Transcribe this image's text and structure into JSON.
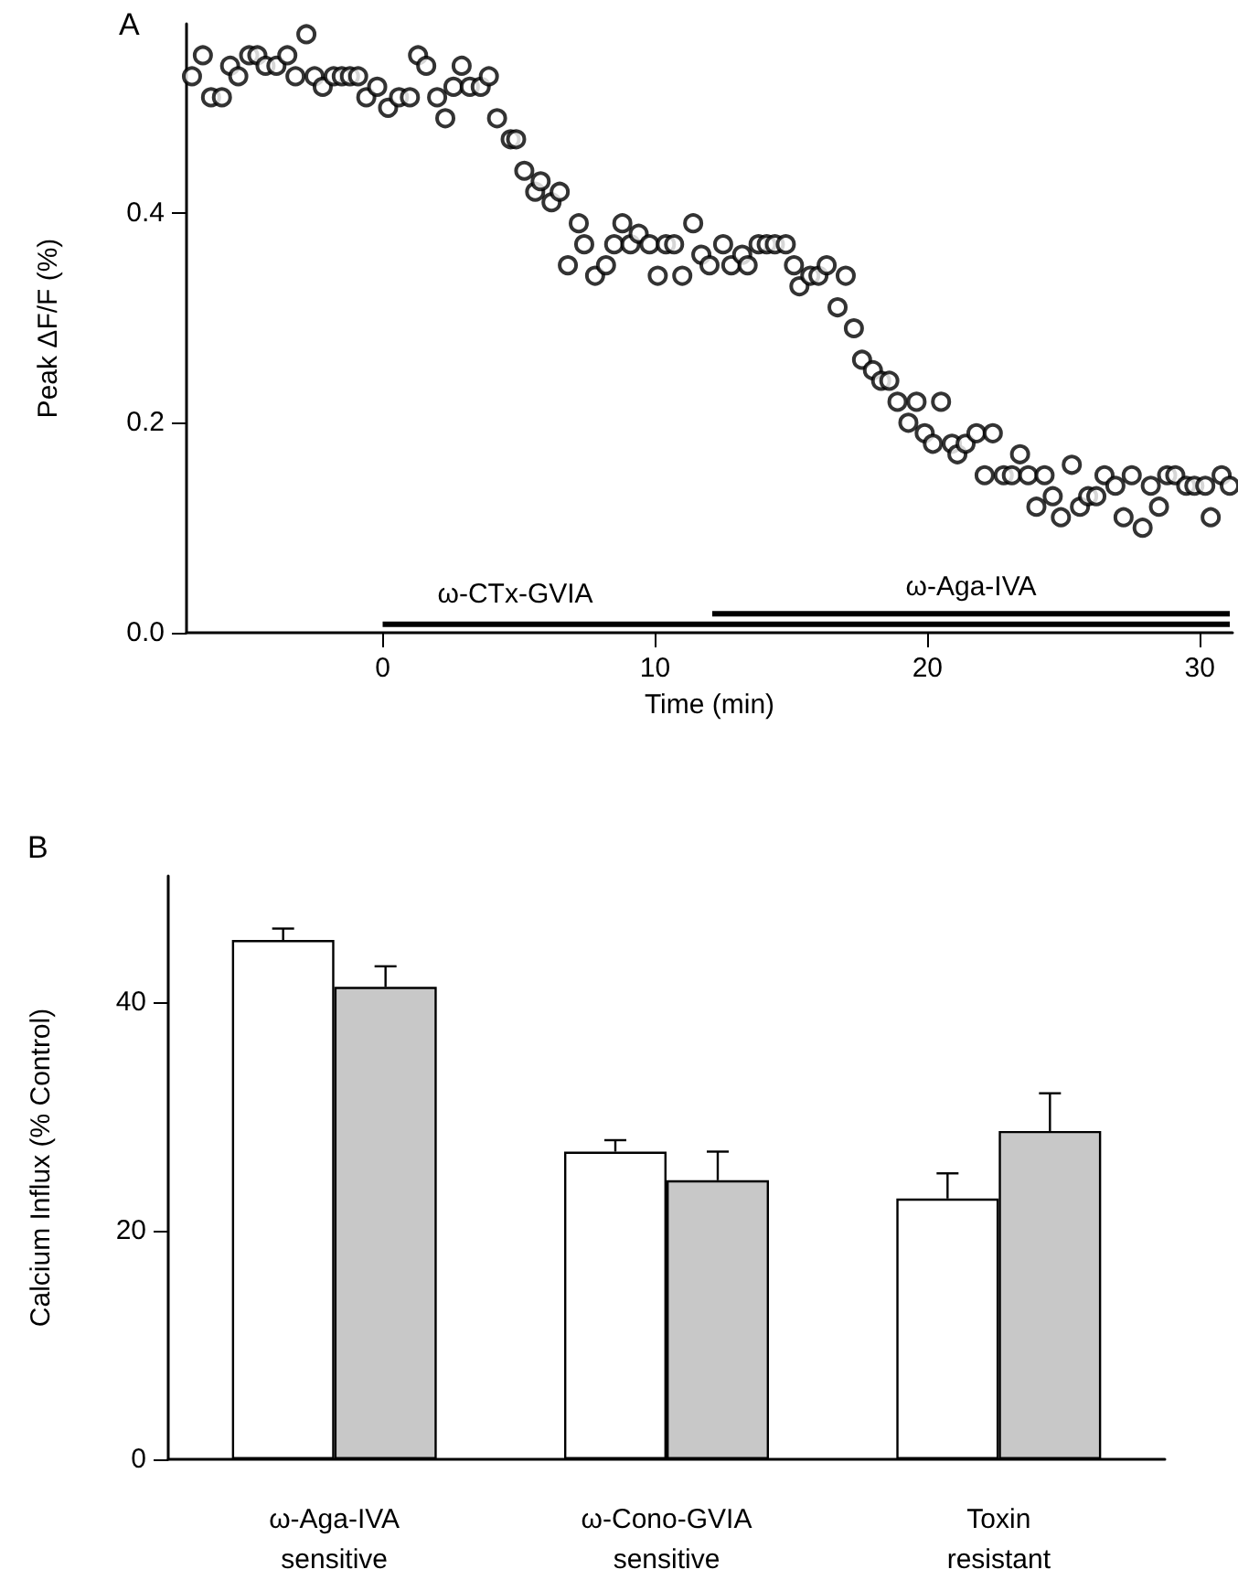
{
  "chart_data": [
    {
      "type": "scatter",
      "title": "A",
      "xlabel": "Time (min)",
      "ylabel": "Peak ΔF/F (%)",
      "marker": "circle",
      "xlim": [
        -7.2,
        31.2
      ],
      "xticks": [
        0,
        10,
        20,
        30
      ],
      "ylim": [
        0,
        0.58
      ],
      "yticks": [
        {
          "value": 0,
          "label": "0.0"
        },
        {
          "value": 0.2,
          "label": "0.2"
        },
        {
          "value": 0.4,
          "label": "0.4"
        }
      ],
      "series": [
        {
          "type": "line",
          "name": "ω-CTx-GVIA",
          "marker": "none",
          "color": "#000000",
          "x": [
            0,
            31.1
          ],
          "values": [
            0.008,
            0.008
          ]
        },
        {
          "type": "line",
          "name": "ω-Aga-IVA",
          "marker": "none",
          "color": "#000000",
          "x": [
            12.1,
            31.1
          ],
          "values": [
            0.018,
            0.018
          ]
        },
        {
          "color": "#000000",
          "x": [
            -7.0,
            -6.6,
            -6.3,
            -5.9,
            -5.6,
            -5.3,
            -4.9,
            -4.6,
            -4.3,
            -3.9,
            -3.5,
            -3.2,
            -2.8,
            -2.5,
            -2.2,
            -1.8,
            -1.5,
            -1.2,
            -0.9,
            -0.6,
            -0.2,
            0.2,
            0.6,
            1.0,
            1.3,
            1.6,
            2.0,
            2.3,
            2.6,
            2.9,
            3.2,
            3.6,
            3.9,
            4.2,
            4.7,
            4.9,
            5.2,
            5.6,
            5.8,
            6.2,
            6.5,
            6.8,
            7.2,
            7.4,
            7.8,
            8.2,
            8.5,
            8.8,
            9.1,
            9.4,
            9.8,
            10.1,
            10.4,
            10.7,
            11.0,
            11.4,
            11.7,
            12.0,
            12.5,
            12.8,
            13.2,
            13.4,
            13.8,
            14.1,
            14.4,
            14.8,
            15.1,
            15.3,
            15.7,
            16.0,
            16.3,
            16.7,
            17.0,
            17.3,
            17.6,
            18.0,
            18.3,
            18.6,
            18.9,
            19.3,
            19.6,
            19.9,
            20.2,
            20.5,
            20.9,
            21.1,
            21.4,
            21.8,
            22.1,
            22.4,
            22.8,
            23.1,
            23.4,
            23.7,
            24.0,
            24.3,
            24.6,
            24.9,
            25.3,
            25.6,
            25.9,
            26.2,
            26.5,
            26.9,
            27.2,
            27.5,
            27.9,
            28.2,
            28.5,
            28.8,
            29.1,
            29.5,
            29.8,
            30.2,
            30.4,
            30.8,
            31.1
          ],
          "values": [
            0.53,
            0.55,
            0.51,
            0.51,
            0.54,
            0.53,
            0.55,
            0.55,
            0.54,
            0.54,
            0.55,
            0.53,
            0.57,
            0.53,
            0.52,
            0.53,
            0.53,
            0.53,
            0.53,
            0.51,
            0.52,
            0.5,
            0.51,
            0.51,
            0.55,
            0.54,
            0.51,
            0.49,
            0.52,
            0.54,
            0.52,
            0.52,
            0.53,
            0.49,
            0.47,
            0.47,
            0.44,
            0.42,
            0.43,
            0.41,
            0.42,
            0.35,
            0.39,
            0.37,
            0.34,
            0.35,
            0.37,
            0.39,
            0.37,
            0.38,
            0.37,
            0.34,
            0.37,
            0.37,
            0.34,
            0.39,
            0.36,
            0.35,
            0.37,
            0.35,
            0.36,
            0.35,
            0.37,
            0.37,
            0.37,
            0.37,
            0.35,
            0.33,
            0.34,
            0.34,
            0.35,
            0.31,
            0.34,
            0.29,
            0.26,
            0.25,
            0.24,
            0.24,
            0.22,
            0.2,
            0.22,
            0.19,
            0.18,
            0.22,
            0.18,
            0.17,
            0.18,
            0.19,
            0.15,
            0.19,
            0.15,
            0.15,
            0.17,
            0.15,
            0.12,
            0.15,
            0.13,
            0.11,
            0.16,
            0.12,
            0.13,
            0.13,
            0.15,
            0.14,
            0.11,
            0.15,
            0.1,
            0.14,
            0.12,
            0.15,
            0.15,
            0.14,
            0.14,
            0.14,
            0.11,
            0.15,
            0.14
          ]
        }
      ]
    },
    {
      "type": "bar",
      "title": "B",
      "ylabel": "Calcium Influx (% Control)",
      "categories": [
        "ω-Aga-IVA\nsensitive",
        "ω-Cono-GVIA\nsensitive",
        "Toxin\nresistant"
      ],
      "ylim": [
        0,
        51
      ],
      "yticks": [
        0,
        20,
        40
      ],
      "series": [
        {
          "color": "#ffffff",
          "values": [
            45.4,
            26.9,
            22.8
          ],
          "errors": [
            [
              45.4,
              46.4
            ],
            [
              26.9,
              27.9
            ],
            [
              22.8,
              25.0
            ]
          ]
        },
        {
          "color": "#c8c8c8",
          "values": [
            41.3,
            24.4,
            28.7
          ],
          "errors": [
            [
              41.3,
              43.1
            ],
            [
              24.4,
              26.9
            ],
            [
              28.7,
              32.0
            ]
          ]
        }
      ]
    }
  ]
}
